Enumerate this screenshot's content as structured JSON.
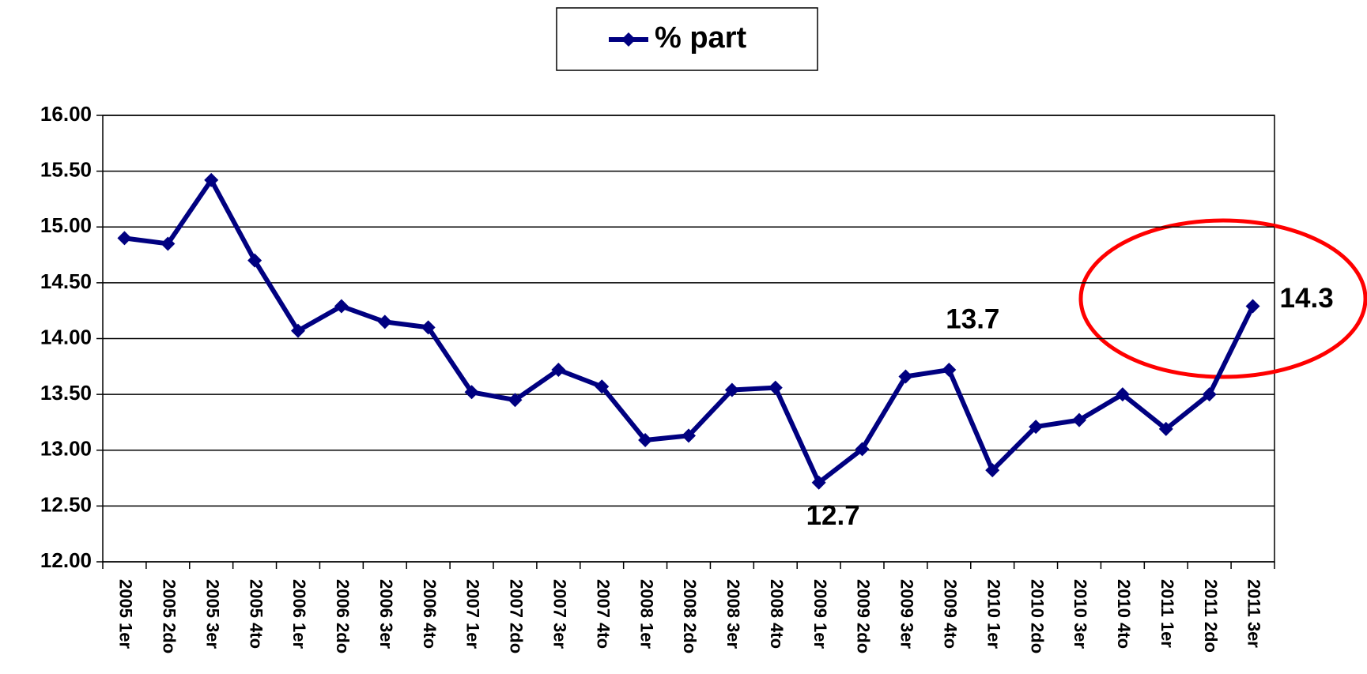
{
  "chart_data": {
    "type": "line",
    "categories": [
      "2005 1er",
      "2005 2do",
      "2005 3er",
      "2005 4to",
      "2006 1er",
      "2006 2do",
      "2006 3er",
      "2006 4to",
      "2007 1er",
      "2007 2do",
      "2007 3er",
      "2007 4to",
      "2008 1er",
      "2008 2do",
      "2008 3er",
      "2008 4to",
      "2009 1er",
      "2009 2do",
      "2009 3er",
      "2009 4to",
      "2010 1er",
      "2010 2do",
      "2010 3er",
      "2010 4to",
      "2011 1er",
      "2011 2do",
      "2011 3er"
    ],
    "series": [
      {
        "name": "% part",
        "color": "#000080",
        "values": [
          14.9,
          14.85,
          15.42,
          14.7,
          14.07,
          14.29,
          14.15,
          14.1,
          13.52,
          13.45,
          13.72,
          13.57,
          13.09,
          13.13,
          13.54,
          13.56,
          12.71,
          13.01,
          13.66,
          13.72,
          12.82,
          13.21,
          13.27,
          13.5,
          13.19,
          13.5,
          14.29
        ],
        "value_labels": [
          null,
          null,
          null,
          null,
          null,
          null,
          null,
          null,
          null,
          null,
          null,
          null,
          null,
          null,
          null,
          null,
          "12.7",
          null,
          null,
          "13.7",
          null,
          null,
          null,
          null,
          null,
          null,
          "14.3"
        ]
      }
    ],
    "ylim": [
      12,
      16
    ],
    "yticks": [
      {
        "value": 12,
        "label": "12.00"
      },
      {
        "value": 12.5,
        "label": "12.50"
      },
      {
        "value": 13,
        "label": "13.00"
      },
      {
        "value": 13.5,
        "label": "13.50"
      },
      {
        "value": 14,
        "label": "14.00"
      },
      {
        "value": 14.5,
        "label": "14.50"
      },
      {
        "value": 15,
        "label": "15.00"
      },
      {
        "value": 15.5,
        "label": "15.50"
      },
      {
        "value": 16,
        "label": "16.00"
      }
    ],
    "grid": true,
    "legend": "top"
  }
}
